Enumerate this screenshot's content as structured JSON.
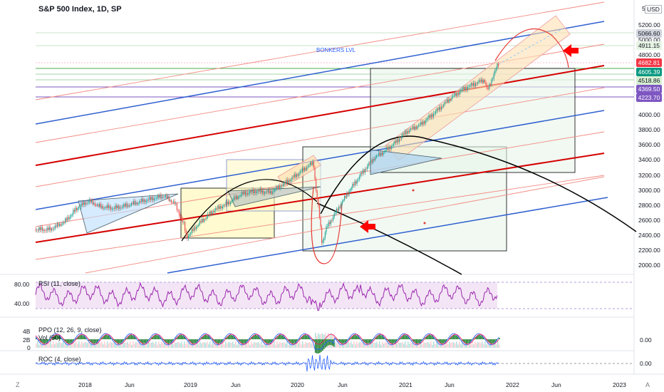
{
  "chart": {
    "title": "S&P 500 Index, 1D, SP",
    "annotation": "BONKERS LVL",
    "currency": "USD",
    "price_axis": {
      "top_label": "5",
      "ticks": [
        "5200.00",
        "5000.00",
        "4800.00",
        "4000.00",
        "3800.00",
        "3600.00",
        "3400.00",
        "3200.00",
        "3000.00",
        "2800.00",
        "2600.00",
        "2400.00",
        "2200.00",
        "2000.00"
      ]
    },
    "price_tags": [
      {
        "label": "5066.60",
        "color": "#d1d4dc",
        "name": "tag-5066"
      },
      {
        "label": "4911.15",
        "color": "#e6f4e3",
        "name": "tag-4911"
      },
      {
        "label": "4682.81",
        "color": "#f23645",
        "name": "tag-last"
      },
      {
        "label": "4605.39",
        "color": "#089981",
        "name": "tag-4605"
      },
      {
        "label": "4518.86",
        "color": "#d7efd2",
        "name": "tag-4518"
      },
      {
        "label": "4369.50",
        "color": "#7e57c2",
        "name": "tag-4369"
      },
      {
        "label": "4223.70",
        "color": "#7e57c2",
        "name": "tag-4223"
      }
    ],
    "time_axis": [
      "2018",
      "Jun",
      "2019",
      "Jun",
      "2020",
      "Jun",
      "2021",
      "Jun",
      "2022",
      "Jun",
      "2023"
    ],
    "corner_left": "Z",
    "corner_right": "A"
  },
  "rsi": {
    "label": "RSI (11, close)",
    "ticks": [
      "80.00",
      "40.00"
    ]
  },
  "ppo": {
    "label": "PPO (12, 26, 9, close)",
    "vol_label": "Vol (50)",
    "ticks": [
      "4B",
      "2B",
      "0"
    ],
    "right_tick": "0.00"
  },
  "roc": {
    "label": "ROC (4, close)",
    "right_tick": "0.00"
  },
  "colors": {
    "bull": "#26a69a",
    "bear": "#ef5350",
    "red_channel": "#e53935",
    "blue_channel": "#2f5fd0",
    "rsi": "#9c27b0",
    "ppo_line": "#2962ff",
    "signal": "#e91e63",
    "hist": "#1b7e2b"
  }
}
